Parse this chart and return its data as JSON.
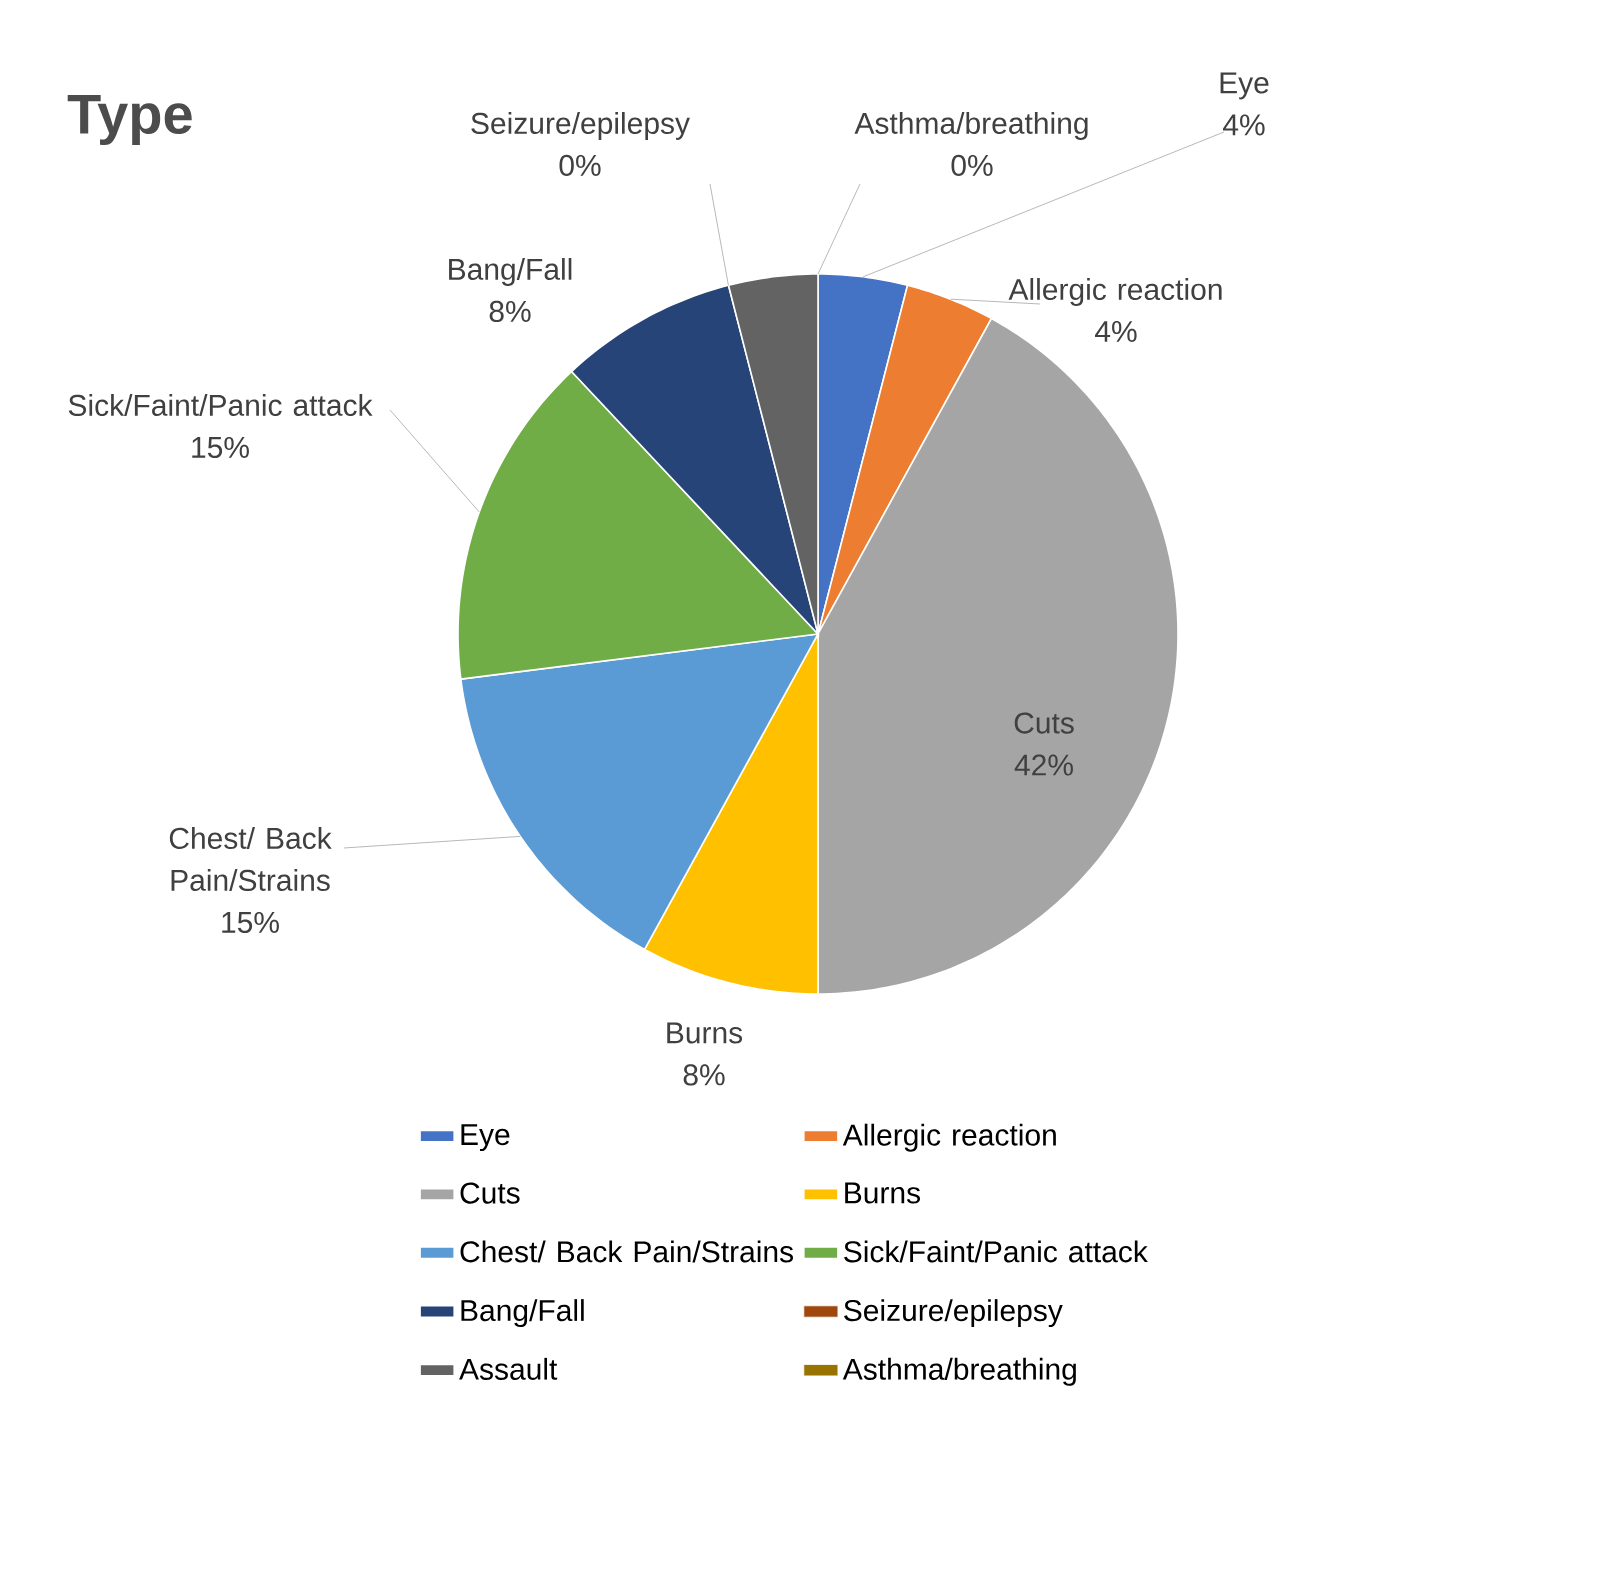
{
  "chart_data": {
    "type": "pie",
    "title": "Type",
    "categories": [
      "Eye",
      "Allergic reaction",
      "Cuts",
      "Burns",
      "Chest/ Back Pain/Strains",
      "Sick/Faint/Panic attack",
      "Bang/Fall",
      "Seizure/epilepsy",
      "Assault",
      "Asthma/breathing"
    ],
    "values": [
      4,
      4,
      42,
      8,
      15,
      15,
      8,
      0,
      4,
      0
    ],
    "value_labels": [
      "4%",
      "4%",
      "42%",
      "8%",
      "15%",
      "15%",
      "8%",
      "0%",
      null,
      "0%"
    ],
    "colors": [
      "#4472c4",
      "#ed7d31",
      "#a5a5a5",
      "#ffc000",
      "#5b9bd5",
      "#70ad47",
      "#264478",
      "#9e480e",
      "#636363",
      "#997300"
    ],
    "legend": "bottom"
  }
}
